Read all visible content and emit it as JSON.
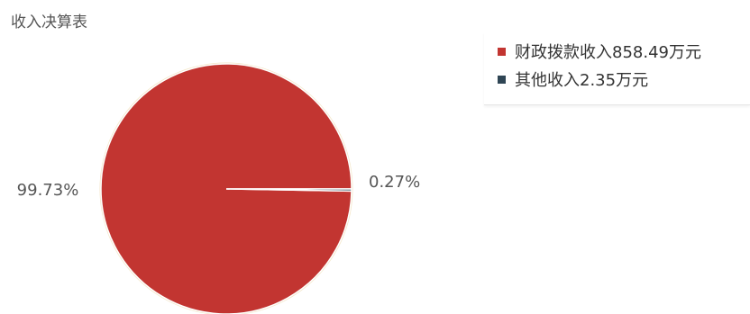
{
  "chart_data": {
    "type": "pie",
    "title": "收入决算表",
    "unit": "万元",
    "slices": [
      {
        "name": "财政拨款收入",
        "value": 858.49,
        "percent_label": "99.73%",
        "color": "#c23531"
      },
      {
        "name": "其他收入",
        "value": 2.35,
        "percent_label": "0.27%",
        "color": "#2f4554"
      }
    ],
    "legend": {
      "position": "top-right",
      "items": [
        "财政拨款收入858.49万元",
        "其他收入2.35万元"
      ]
    }
  }
}
